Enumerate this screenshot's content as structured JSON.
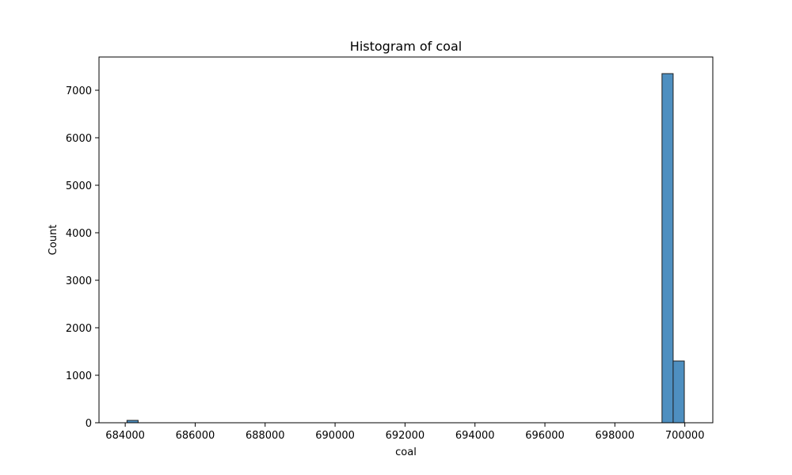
{
  "chart_data": {
    "type": "bar",
    "title": "Histogram of coal",
    "xlabel": "coal",
    "ylabel": "Count",
    "xlim": [
      683250,
      700800
    ],
    "ylim": [
      0,
      7700
    ],
    "x_ticks": [
      684000,
      686000,
      688000,
      690000,
      692000,
      694000,
      696000,
      698000,
      700000
    ],
    "x_tick_labels": [
      "684000",
      "686000",
      "688000",
      "690000",
      "692000",
      "694000",
      "696000",
      "698000",
      "700000"
    ],
    "y_ticks": [
      0,
      1000,
      2000,
      3000,
      4000,
      5000,
      6000,
      7000
    ],
    "y_tick_labels": [
      "0",
      "1000",
      "2000",
      "3000",
      "4000",
      "5000",
      "6000",
      "7000"
    ],
    "bin_start": 684050,
    "bin_width": 318.7,
    "counts": [
      12,
      0,
      0,
      0,
      0,
      0,
      0,
      0,
      0,
      0,
      0,
      0,
      0,
      0,
      0,
      0,
      0,
      0,
      0,
      0,
      0,
      0,
      0,
      0,
      0,
      0,
      0,
      0,
      0,
      0,
      0,
      0,
      0,
      0,
      0,
      0,
      0,
      0,
      0,
      0,
      0,
      0,
      0,
      0,
      0,
      0,
      0,
      0,
      7350,
      1300
    ],
    "bar_color": "#4e8fc0",
    "edge_color": "#1f1f1f",
    "grid": false
  }
}
